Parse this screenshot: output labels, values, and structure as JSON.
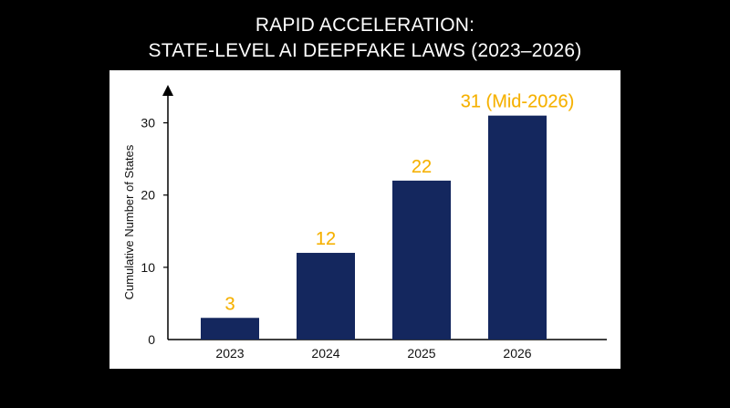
{
  "chart_data": {
    "type": "bar",
    "title_lines": [
      "RAPID ACCELERATION:",
      "STATE-LEVEL AI DEEPFAKE LAWS (2023–2026)"
    ],
    "xlabel": "",
    "ylabel": "Cumulative Number of States",
    "categories": [
      "2023",
      "2024",
      "2025",
      "2026"
    ],
    "values": [
      3,
      12,
      22,
      31
    ],
    "data_labels": [
      "3",
      "12",
      "22",
      "31 (Mid-2026)"
    ],
    "ylim": [
      0,
      35
    ],
    "yticks": [
      0,
      10,
      20,
      30
    ],
    "ytick_labels": [
      "0",
      "10",
      "20",
      "30"
    ],
    "grid": false,
    "colors": {
      "bar": "#14275e",
      "data_label": "#f5b000",
      "background": "#000000",
      "panel": "#ffffff",
      "title": "#ffffff"
    }
  }
}
